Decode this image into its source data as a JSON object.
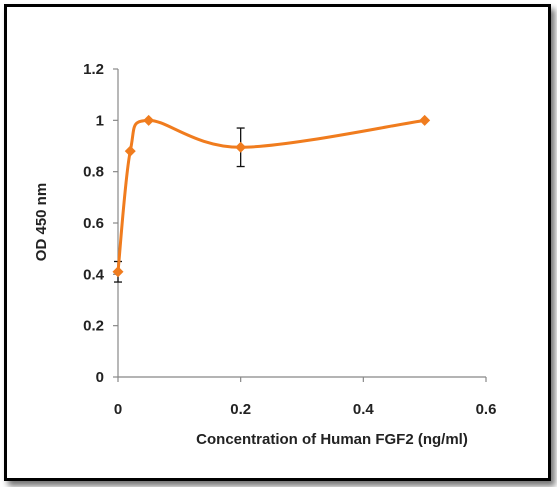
{
  "chart_data": {
    "type": "line",
    "xlabel": "Concentration of  Human FGF2 (ng/ml)",
    "ylabel": "OD 450 nm",
    "xlim": [
      0,
      0.6
    ],
    "ylim": [
      0,
      1.2
    ],
    "x_ticks": [
      "0",
      "0.2",
      "0.4",
      "0.6"
    ],
    "y_ticks": [
      "0",
      "0.2",
      "0.4",
      "0.6",
      "0.8",
      "1",
      "1.2"
    ],
    "grid": false,
    "smooth": true,
    "series": [
      {
        "color": "#f07c1e",
        "marker": "diamond",
        "x": [
          0,
          0.02,
          0.05,
          0.2,
          0.5
        ],
        "y": [
          0.41,
          0.88,
          1.0,
          0.895,
          1.0
        ],
        "error": [
          0.04,
          0,
          0,
          0.075,
          0
        ]
      }
    ]
  }
}
